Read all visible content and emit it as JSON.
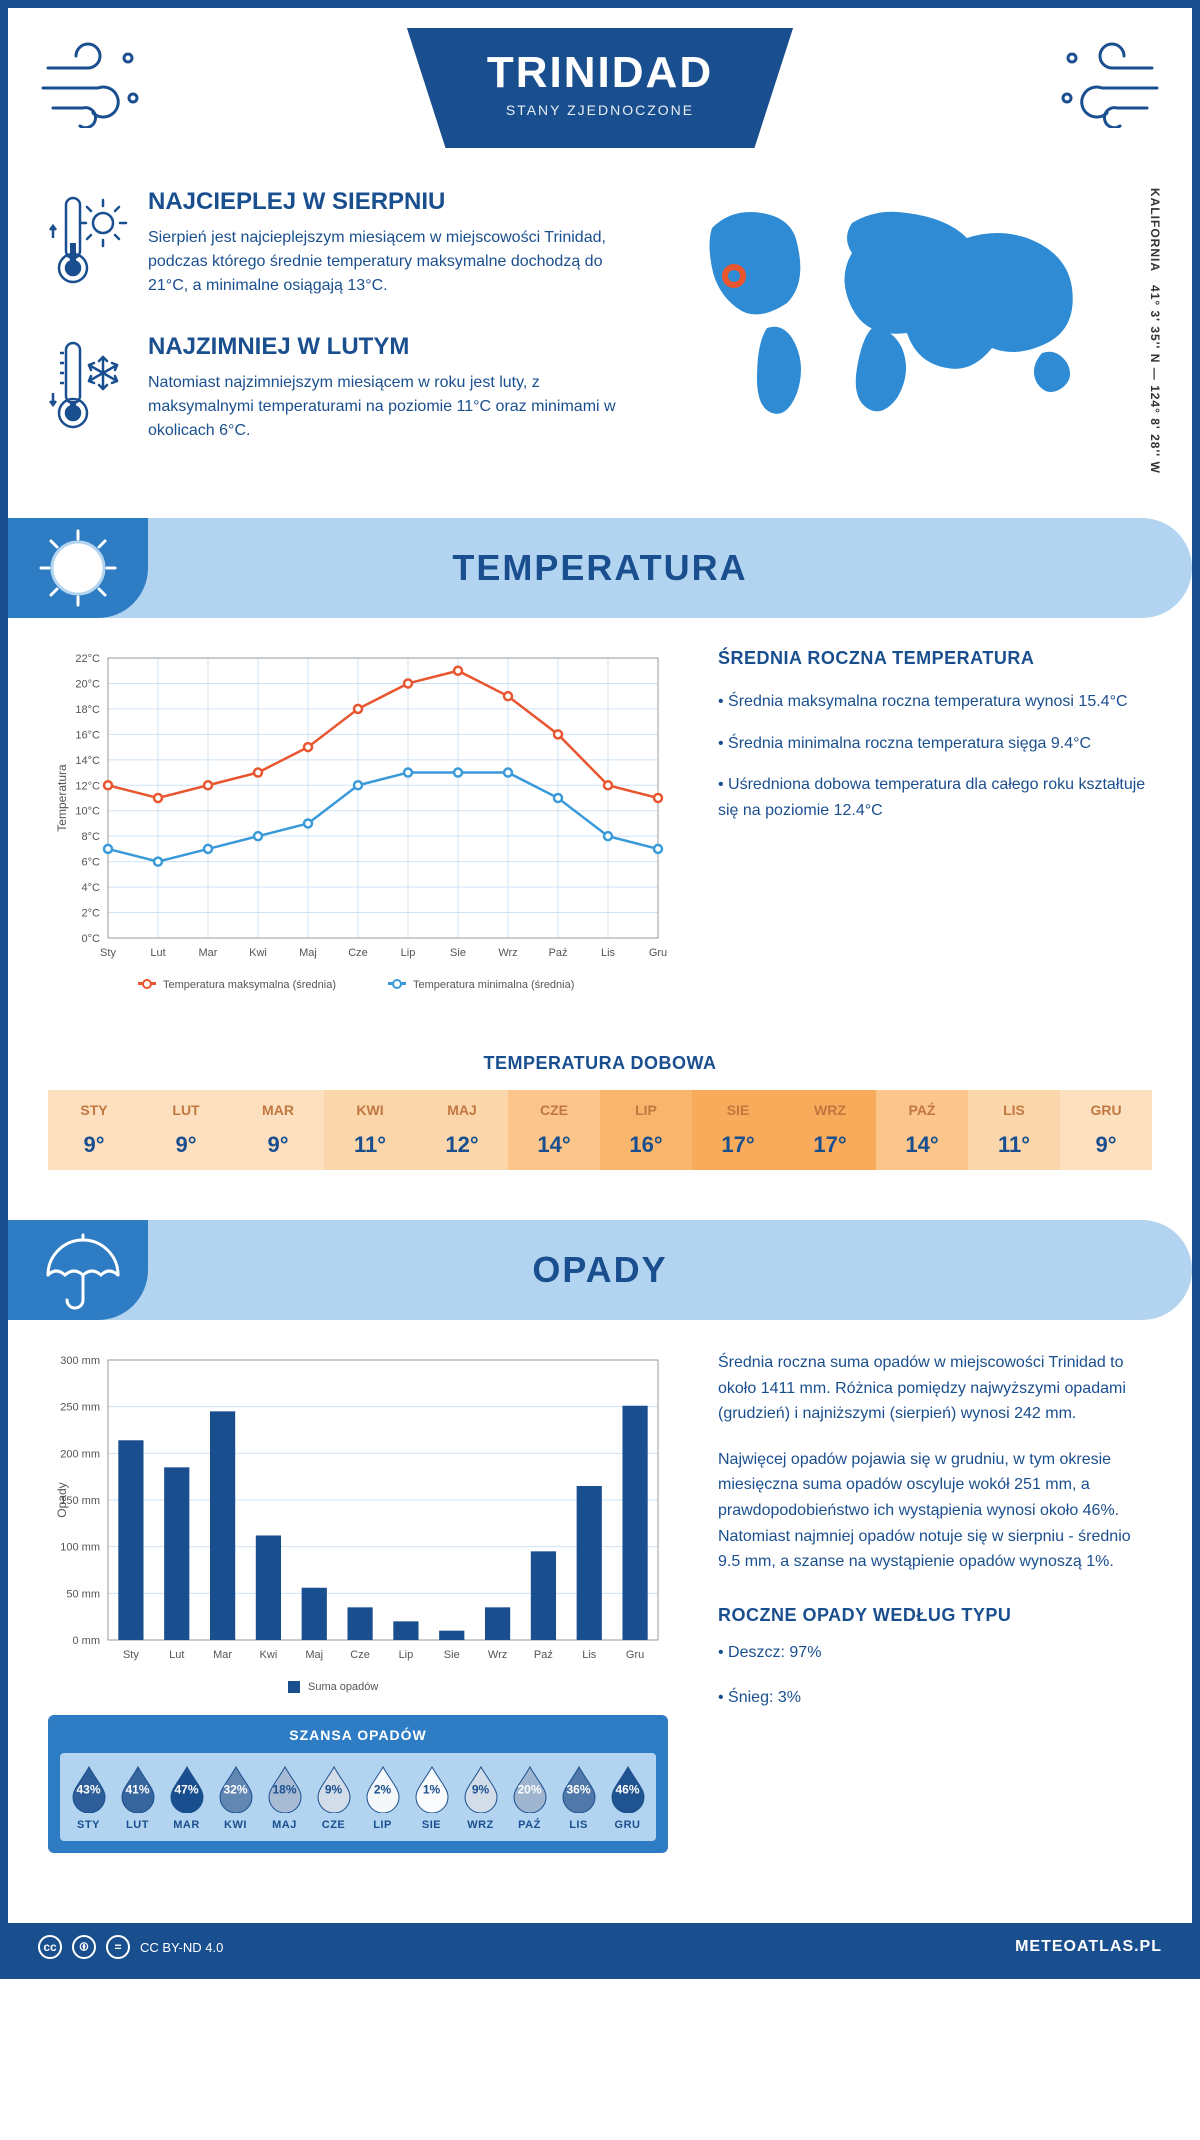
{
  "header": {
    "title": "TRINIDAD",
    "subtitle": "STANY ZJEDNOCZONE"
  },
  "coords": {
    "text": "41° 3' 35'' N — 124° 8' 28'' W",
    "region": "KALIFORNIA"
  },
  "hot": {
    "title": "NAJCIEPLEJ W SIERPNIU",
    "text": "Sierpień jest najcieplejszym miesiącem w miejscowości Trinidad, podczas którego średnie temperatury maksymalne dochodzą do 21°C, a minimalne osiągają 13°C."
  },
  "cold": {
    "title": "NAJZIMNIEJ W LUTYM",
    "text": "Natomiast najzimniejszym miesiącem w roku jest luty, z maksymalnymi temperaturami na poziomie 11°C oraz minimami w okolicach 6°C."
  },
  "sections": {
    "temp": "TEMPERATURA",
    "precip": "OPADY"
  },
  "months": [
    "Sty",
    "Lut",
    "Mar",
    "Kwi",
    "Maj",
    "Cze",
    "Lip",
    "Sie",
    "Wrz",
    "Paź",
    "Lis",
    "Gru"
  ],
  "temp_chart": {
    "ylabel": "Temperatura",
    "ymin": 0,
    "ymax": 22,
    "ytick": 2,
    "max_series": [
      12,
      11,
      12,
      13,
      15,
      18,
      20,
      21,
      19,
      16,
      12,
      11
    ],
    "min_series": [
      7,
      6,
      7,
      8,
      9,
      12,
      13,
      13,
      13,
      11,
      8,
      7
    ],
    "max_color": "#e8552f",
    "min_color": "#3a9ad9",
    "legend_max": "Temperatura maksymalna (średnia)",
    "legend_min": "Temperatura minimalna (średnia)",
    "grid_color": "#cfe3f5",
    "bg": "#ffffff"
  },
  "temp_info": {
    "title": "ŚREDNIA ROCZNA TEMPERATURA",
    "p1": "• Średnia maksymalna roczna temperatura wynosi 15.4°C",
    "p2": "• Średnia minimalna roczna temperatura sięga 9.4°C",
    "p3": "• Uśredniona dobowa temperatura dla całego roku kształtuje się na poziomie 12.4°C"
  },
  "daily": {
    "title": "TEMPERATURA DOBOWA",
    "months": [
      "STY",
      "LUT",
      "MAR",
      "KWI",
      "MAJ",
      "CZE",
      "LIP",
      "SIE",
      "WRZ",
      "PAŹ",
      "LIS",
      "GRU"
    ],
    "values": [
      "9°",
      "9°",
      "9°",
      "11°",
      "12°",
      "14°",
      "16°",
      "17°",
      "17°",
      "14°",
      "11°",
      "9°"
    ],
    "colors": [
      "#fde0bf",
      "#fde0bf",
      "#fde0bf",
      "#fcd6ab",
      "#fcd6ab",
      "#fbc58b",
      "#f9b56c",
      "#f8ab5a",
      "#f8ab5a",
      "#fbc58b",
      "#fcd6ab",
      "#fde0bf"
    ]
  },
  "precip_chart": {
    "ylabel": "Opady",
    "ymin": 0,
    "ymax": 300,
    "ytick": 50,
    "values": [
      214,
      185,
      245,
      112,
      56,
      35,
      20,
      10,
      35,
      95,
      165,
      251
    ],
    "bar_color": "#1a4f8f",
    "legend": "Suma opadów",
    "grid_color": "#cfe3f5"
  },
  "precip_info": {
    "p1": "Średnia roczna suma opadów w miejscowości Trinidad to około 1411 mm. Różnica pomiędzy najwyższymi opadami (grudzień) i najniższymi (sierpień) wynosi 242 mm.",
    "p2": "Najwięcej opadów pojawia się w grudniu, w tym okresie miesięczna suma opadów oscyluje wokół 251 mm, a prawdopodobieństwo ich wystąpienia wynosi około 46%. Natomiast najmniej opadów notuje się w sierpniu - średnio 9.5 mm, a szanse na wystąpienie opadów wynoszą 1%.",
    "type_title": "ROCZNE OPADY WEDŁUG TYPU",
    "type1": "• Deszcz: 97%",
    "type2": "• Śnieg: 3%"
  },
  "chance": {
    "title": "SZANSA OPADÓW",
    "months": [
      "STY",
      "LUT",
      "MAR",
      "KWI",
      "MAJ",
      "CZE",
      "LIP",
      "SIE",
      "WRZ",
      "PAŹ",
      "LIS",
      "GRU"
    ],
    "values": [
      43,
      41,
      47,
      32,
      18,
      9,
      2,
      1,
      9,
      20,
      36,
      46
    ]
  },
  "footer": {
    "license": "CC BY-ND 4.0",
    "site": "METEOATLAS.PL"
  },
  "colors": {
    "primary": "#1a4f8f",
    "light_blue": "#b3d4f0",
    "mid_blue": "#2e7cc4",
    "marker": "#e8552f"
  }
}
